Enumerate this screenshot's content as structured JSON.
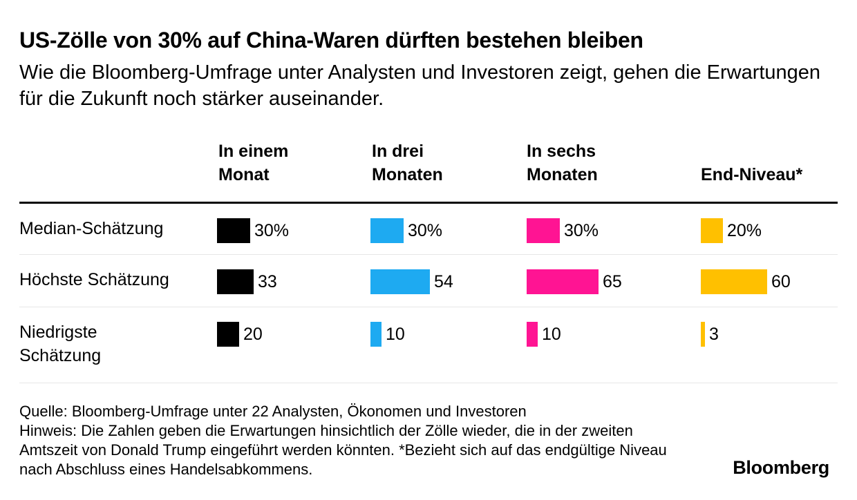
{
  "title": "US-Zölle von 30% auf China-Waren dürften bestehen bleiben",
  "subtitle": "Wie die Bloomberg-Umfrage unter Analysten und Investoren zeigt, gehen die Erwartungen für die Zukunft noch stärker auseinander.",
  "columns": [
    {
      "line1": "In einem",
      "line2": "Monat",
      "color": "#000000"
    },
    {
      "line1": "In drei",
      "line2": "Monaten",
      "color": "#1eaaf1"
    },
    {
      "line1": "In sechs",
      "line2": "Monaten",
      "color": "#ff1493"
    },
    {
      "line1": "",
      "line2": "End-Niveau*",
      "color": "#ffc000"
    }
  ],
  "rows": [
    {
      "line1": "Median-Schätzung",
      "line2": ""
    },
    {
      "line1": "Höchste Schätzung",
      "line2": ""
    },
    {
      "line1": "Niedrigste",
      "line2": "Schätzung"
    }
  ],
  "chart_data": {
    "type": "bar",
    "categories": [
      "Median-Schätzung",
      "Höchste Schätzung",
      "Niedrigste Schätzung"
    ],
    "series": [
      {
        "name": "In einem Monat",
        "values": [
          30,
          33,
          20
        ],
        "labels": [
          "30%",
          "33",
          "20"
        ]
      },
      {
        "name": "In drei Monaten",
        "values": [
          30,
          54,
          10
        ],
        "labels": [
          "30%",
          "54",
          "10"
        ]
      },
      {
        "name": "In sechs Monaten",
        "values": [
          30,
          65,
          10
        ],
        "labels": [
          "30%",
          "65",
          "10"
        ]
      },
      {
        "name": "End-Niveau*",
        "values": [
          20,
          60,
          3
        ],
        "labels": [
          "20%",
          "60",
          "3"
        ]
      }
    ]
  },
  "notes": {
    "source": "Quelle: Bloomberg-Umfrage unter 22 Analysten, Ökonomen und Investoren",
    "note": "Hinweis: Die Zahlen geben die Erwartungen hinsichtlich der Zölle wieder, die in der zweiten Amtszeit von Donald Trump eingeführt werden könnten. *Bezieht sich auf das endgültige Niveau nach Abschluss eines Handelsabkommens."
  },
  "logo": "Bloomberg"
}
